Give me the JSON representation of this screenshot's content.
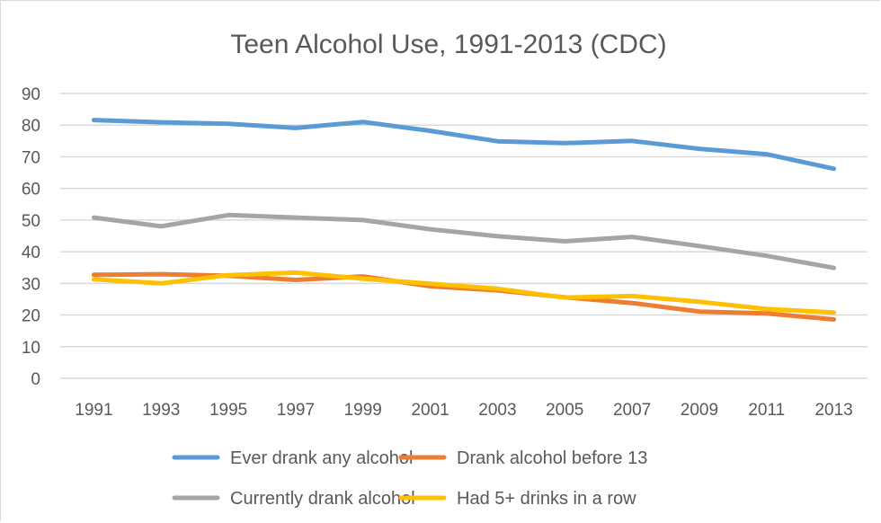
{
  "chart_data": {
    "type": "line",
    "title": "Teen Alcohol Use, 1991-2013 (CDC)",
    "xlabel": "",
    "ylabel": "",
    "categories": [
      "1991",
      "1993",
      "1995",
      "1997",
      "1999",
      "2001",
      "2003",
      "2005",
      "2007",
      "2009",
      "2011",
      "2013"
    ],
    "yticks": [
      "0",
      "10",
      "20",
      "30",
      "40",
      "50",
      "60",
      "70",
      "80",
      "90"
    ],
    "ylim": [
      0,
      90
    ],
    "grid": true,
    "legend_position": "bottom",
    "series": [
      {
        "name": "Ever drank any alcohol",
        "color": "#5B9BD5",
        "values": [
          81.6,
          80.9,
          80.4,
          79.1,
          81.0,
          78.2,
          74.9,
          74.3,
          75.0,
          72.5,
          70.8,
          66.2
        ]
      },
      {
        "name": "Drank alcohol before 13",
        "color": "#ED7D31",
        "values": [
          32.7,
          32.9,
          32.4,
          31.1,
          32.2,
          29.1,
          27.8,
          25.6,
          23.8,
          21.1,
          20.5,
          18.6
        ]
      },
      {
        "name": "Currently drank alcohol",
        "color": "#A5A5A5",
        "values": [
          50.8,
          48.0,
          51.6,
          50.8,
          50.0,
          47.1,
          44.9,
          43.3,
          44.7,
          41.8,
          38.7,
          34.9
        ]
      },
      {
        "name": "Had 5+ drinks in a row",
        "color": "#FFC000",
        "values": [
          31.3,
          30.0,
          32.6,
          33.4,
          31.5,
          29.9,
          28.3,
          25.5,
          26.0,
          24.2,
          21.9,
          20.8
        ]
      }
    ]
  }
}
